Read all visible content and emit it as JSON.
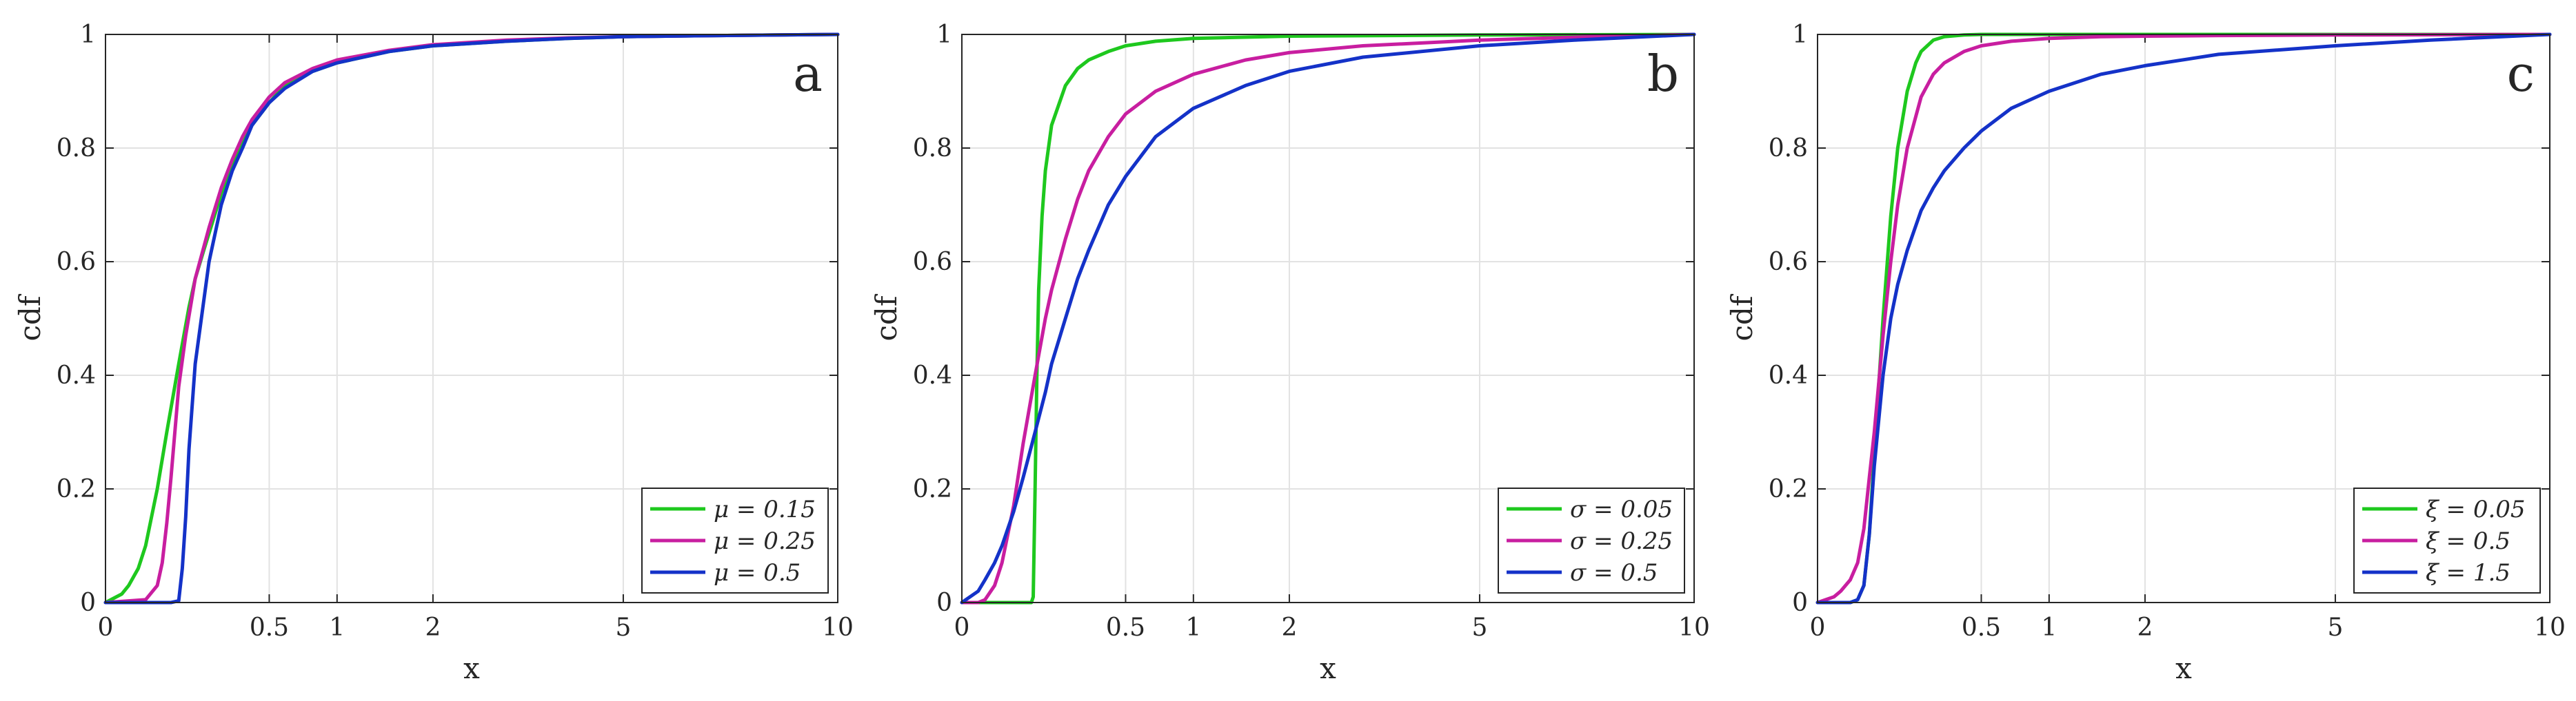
{
  "chart_data": [
    {
      "type": "line",
      "panel_label": "a",
      "xlabel": "x",
      "ylabel": "cdf",
      "xlim": [
        0,
        10
      ],
      "ylim": [
        0,
        1
      ],
      "x_scale": "sqrt",
      "xticks": [
        0,
        0.5,
        1,
        2,
        5,
        10
      ],
      "xtick_labels": [
        "0",
        "0.5",
        "1",
        "2",
        "5",
        "10"
      ],
      "yticks": [
        0,
        0.2,
        0.4,
        0.6,
        0.8,
        1
      ],
      "ytick_labels": [
        "0",
        "0.2",
        "0.4",
        "0.6",
        "0.8",
        "1"
      ],
      "grid": true,
      "legend_position": "bottom-right",
      "series": [
        {
          "name": "μ = 0.15",
          "color": "#1ec81e",
          "x": [
            0,
            0.005,
            0.01,
            0.02,
            0.03,
            0.05,
            0.07,
            0.1,
            0.13,
            0.15,
            0.18,
            0.2,
            0.25,
            0.3,
            0.35,
            0.4,
            0.5,
            0.6,
            0.8,
            1,
            1.5,
            2,
            3,
            4,
            5,
            7,
            10
          ],
          "y": [
            0,
            0.015,
            0.03,
            0.06,
            0.1,
            0.2,
            0.3,
            0.42,
            0.52,
            0.57,
            0.62,
            0.65,
            0.72,
            0.77,
            0.81,
            0.84,
            0.88,
            0.91,
            0.935,
            0.95,
            0.97,
            0.98,
            0.988,
            0.993,
            0.996,
            0.998,
            1
          ]
        },
        {
          "name": "μ = 0.25",
          "color": "#c81ea0",
          "x": [
            0,
            0.03,
            0.05,
            0.06,
            0.07,
            0.08,
            0.1,
            0.12,
            0.15,
            0.2,
            0.25,
            0.3,
            0.35,
            0.4,
            0.5,
            0.6,
            0.8,
            1,
            1.5,
            2,
            3,
            4,
            5,
            7,
            10
          ],
          "y": [
            0,
            0.005,
            0.03,
            0.07,
            0.14,
            0.22,
            0.38,
            0.47,
            0.57,
            0.66,
            0.73,
            0.78,
            0.82,
            0.85,
            0.89,
            0.915,
            0.94,
            0.955,
            0.972,
            0.982,
            0.99,
            0.994,
            0.996,
            0.998,
            1
          ]
        },
        {
          "name": "μ = 0.5",
          "color": "#1432c8",
          "x": [
            0,
            0.08,
            0.1,
            0.11,
            0.12,
            0.13,
            0.15,
            0.2,
            0.25,
            0.3,
            0.35,
            0.4,
            0.5,
            0.6,
            0.8,
            1,
            1.5,
            2,
            3,
            4,
            5,
            7,
            10
          ],
          "y": [
            0,
            0,
            0.003,
            0.06,
            0.15,
            0.27,
            0.42,
            0.6,
            0.7,
            0.76,
            0.8,
            0.84,
            0.88,
            0.905,
            0.935,
            0.95,
            0.97,
            0.98,
            0.988,
            0.993,
            0.996,
            0.998,
            1
          ]
        }
      ]
    },
    {
      "type": "line",
      "panel_label": "b",
      "xlabel": "x",
      "ylabel": "cdf",
      "xlim": [
        0,
        10
      ],
      "ylim": [
        0,
        1
      ],
      "x_scale": "sqrt",
      "xticks": [
        0,
        0.5,
        1,
        2,
        5,
        10
      ],
      "xtick_labels": [
        "0",
        "0.5",
        "1",
        "2",
        "5",
        "10"
      ],
      "yticks": [
        0,
        0.2,
        0.4,
        0.6,
        0.8,
        1
      ],
      "ytick_labels": [
        "0",
        "0.2",
        "0.4",
        "0.6",
        "0.8",
        "1"
      ],
      "grid": true,
      "legend_position": "bottom-right",
      "series": [
        {
          "name": "σ = 0.05",
          "color": "#1ec81e",
          "x": [
            0,
            0.09,
            0.095,
            0.1,
            0.105,
            0.11,
            0.12,
            0.13,
            0.15,
            0.2,
            0.25,
            0.3,
            0.4,
            0.5,
            0.7,
            1,
            2,
            5,
            10
          ],
          "y": [
            0,
            0,
            0.01,
            0.2,
            0.4,
            0.55,
            0.68,
            0.76,
            0.84,
            0.91,
            0.94,
            0.955,
            0.97,
            0.98,
            0.988,
            0.993,
            0.997,
            0.999,
            1
          ]
        },
        {
          "name": "σ = 0.25",
          "color": "#c81ea0",
          "x": [
            0,
            0.005,
            0.01,
            0.02,
            0.03,
            0.05,
            0.07,
            0.1,
            0.13,
            0.15,
            0.2,
            0.25,
            0.3,
            0.4,
            0.5,
            0.7,
            1,
            1.5,
            2,
            3,
            5,
            7,
            10
          ],
          "y": [
            0,
            0,
            0.005,
            0.03,
            0.07,
            0.17,
            0.28,
            0.4,
            0.5,
            0.55,
            0.64,
            0.71,
            0.76,
            0.82,
            0.86,
            0.9,
            0.93,
            0.955,
            0.968,
            0.98,
            0.99,
            0.995,
            1
          ]
        },
        {
          "name": "σ = 0.5",
          "color": "#1432c8",
          "x": [
            0,
            0.005,
            0.01,
            0.02,
            0.03,
            0.05,
            0.07,
            0.1,
            0.13,
            0.15,
            0.2,
            0.25,
            0.3,
            0.4,
            0.5,
            0.7,
            1,
            1.5,
            2,
            3,
            5,
            7,
            10
          ],
          "y": [
            0,
            0.02,
            0.04,
            0.07,
            0.1,
            0.16,
            0.22,
            0.3,
            0.37,
            0.42,
            0.5,
            0.57,
            0.62,
            0.7,
            0.75,
            0.82,
            0.87,
            0.91,
            0.935,
            0.96,
            0.98,
            0.99,
            1
          ]
        }
      ]
    },
    {
      "type": "line",
      "panel_label": "c",
      "xlabel": "x",
      "ylabel": "cdf",
      "xlim": [
        0,
        10
      ],
      "ylim": [
        0,
        1
      ],
      "x_scale": "sqrt",
      "xticks": [
        0,
        0.5,
        1,
        2,
        5,
        10
      ],
      "xtick_labels": [
        "0",
        "0.5",
        "1",
        "2",
        "5",
        "10"
      ],
      "yticks": [
        0,
        0.2,
        0.4,
        0.6,
        0.8,
        1
      ],
      "ytick_labels": [
        "0",
        "0.2",
        "0.4",
        "0.6",
        "0.8",
        "1"
      ],
      "grid": true,
      "legend_position": "bottom-right",
      "series": [
        {
          "name": "ξ = 0.05",
          "color": "#1ec81e",
          "x": [
            0,
            0.02,
            0.03,
            0.04,
            0.05,
            0.06,
            0.08,
            0.1,
            0.12,
            0.15,
            0.18,
            0.2,
            0.25,
            0.3,
            0.4,
            0.5,
            1,
            10
          ],
          "y": [
            0,
            0,
            0.005,
            0.03,
            0.12,
            0.26,
            0.5,
            0.68,
            0.8,
            0.9,
            0.95,
            0.97,
            0.99,
            0.996,
            0.999,
            1,
            1,
            1
          ]
        },
        {
          "name": "ξ = 0.5",
          "color": "#c81ea0",
          "x": [
            0,
            0.005,
            0.01,
            0.02,
            0.03,
            0.04,
            0.05,
            0.06,
            0.08,
            0.1,
            0.12,
            0.15,
            0.2,
            0.25,
            0.3,
            0.4,
            0.5,
            0.7,
            1,
            1.5,
            2,
            3,
            5,
            10
          ],
          "y": [
            0,
            0.01,
            0.02,
            0.04,
            0.07,
            0.13,
            0.22,
            0.3,
            0.47,
            0.6,
            0.7,
            0.8,
            0.89,
            0.93,
            0.95,
            0.97,
            0.98,
            0.988,
            0.993,
            0.996,
            0.997,
            0.998,
            0.999,
            1
          ]
        },
        {
          "name": "ξ = 1.5",
          "color": "#1432c8",
          "x": [
            0,
            0.02,
            0.03,
            0.04,
            0.05,
            0.06,
            0.08,
            0.1,
            0.12,
            0.15,
            0.2,
            0.25,
            0.3,
            0.4,
            0.5,
            0.7,
            1,
            1.5,
            2,
            3,
            5,
            7,
            10
          ],
          "y": [
            0,
            0,
            0.005,
            0.03,
            0.12,
            0.24,
            0.4,
            0.5,
            0.56,
            0.62,
            0.69,
            0.73,
            0.76,
            0.8,
            0.83,
            0.87,
            0.9,
            0.93,
            0.945,
            0.965,
            0.98,
            0.99,
            1
          ]
        }
      ]
    }
  ]
}
